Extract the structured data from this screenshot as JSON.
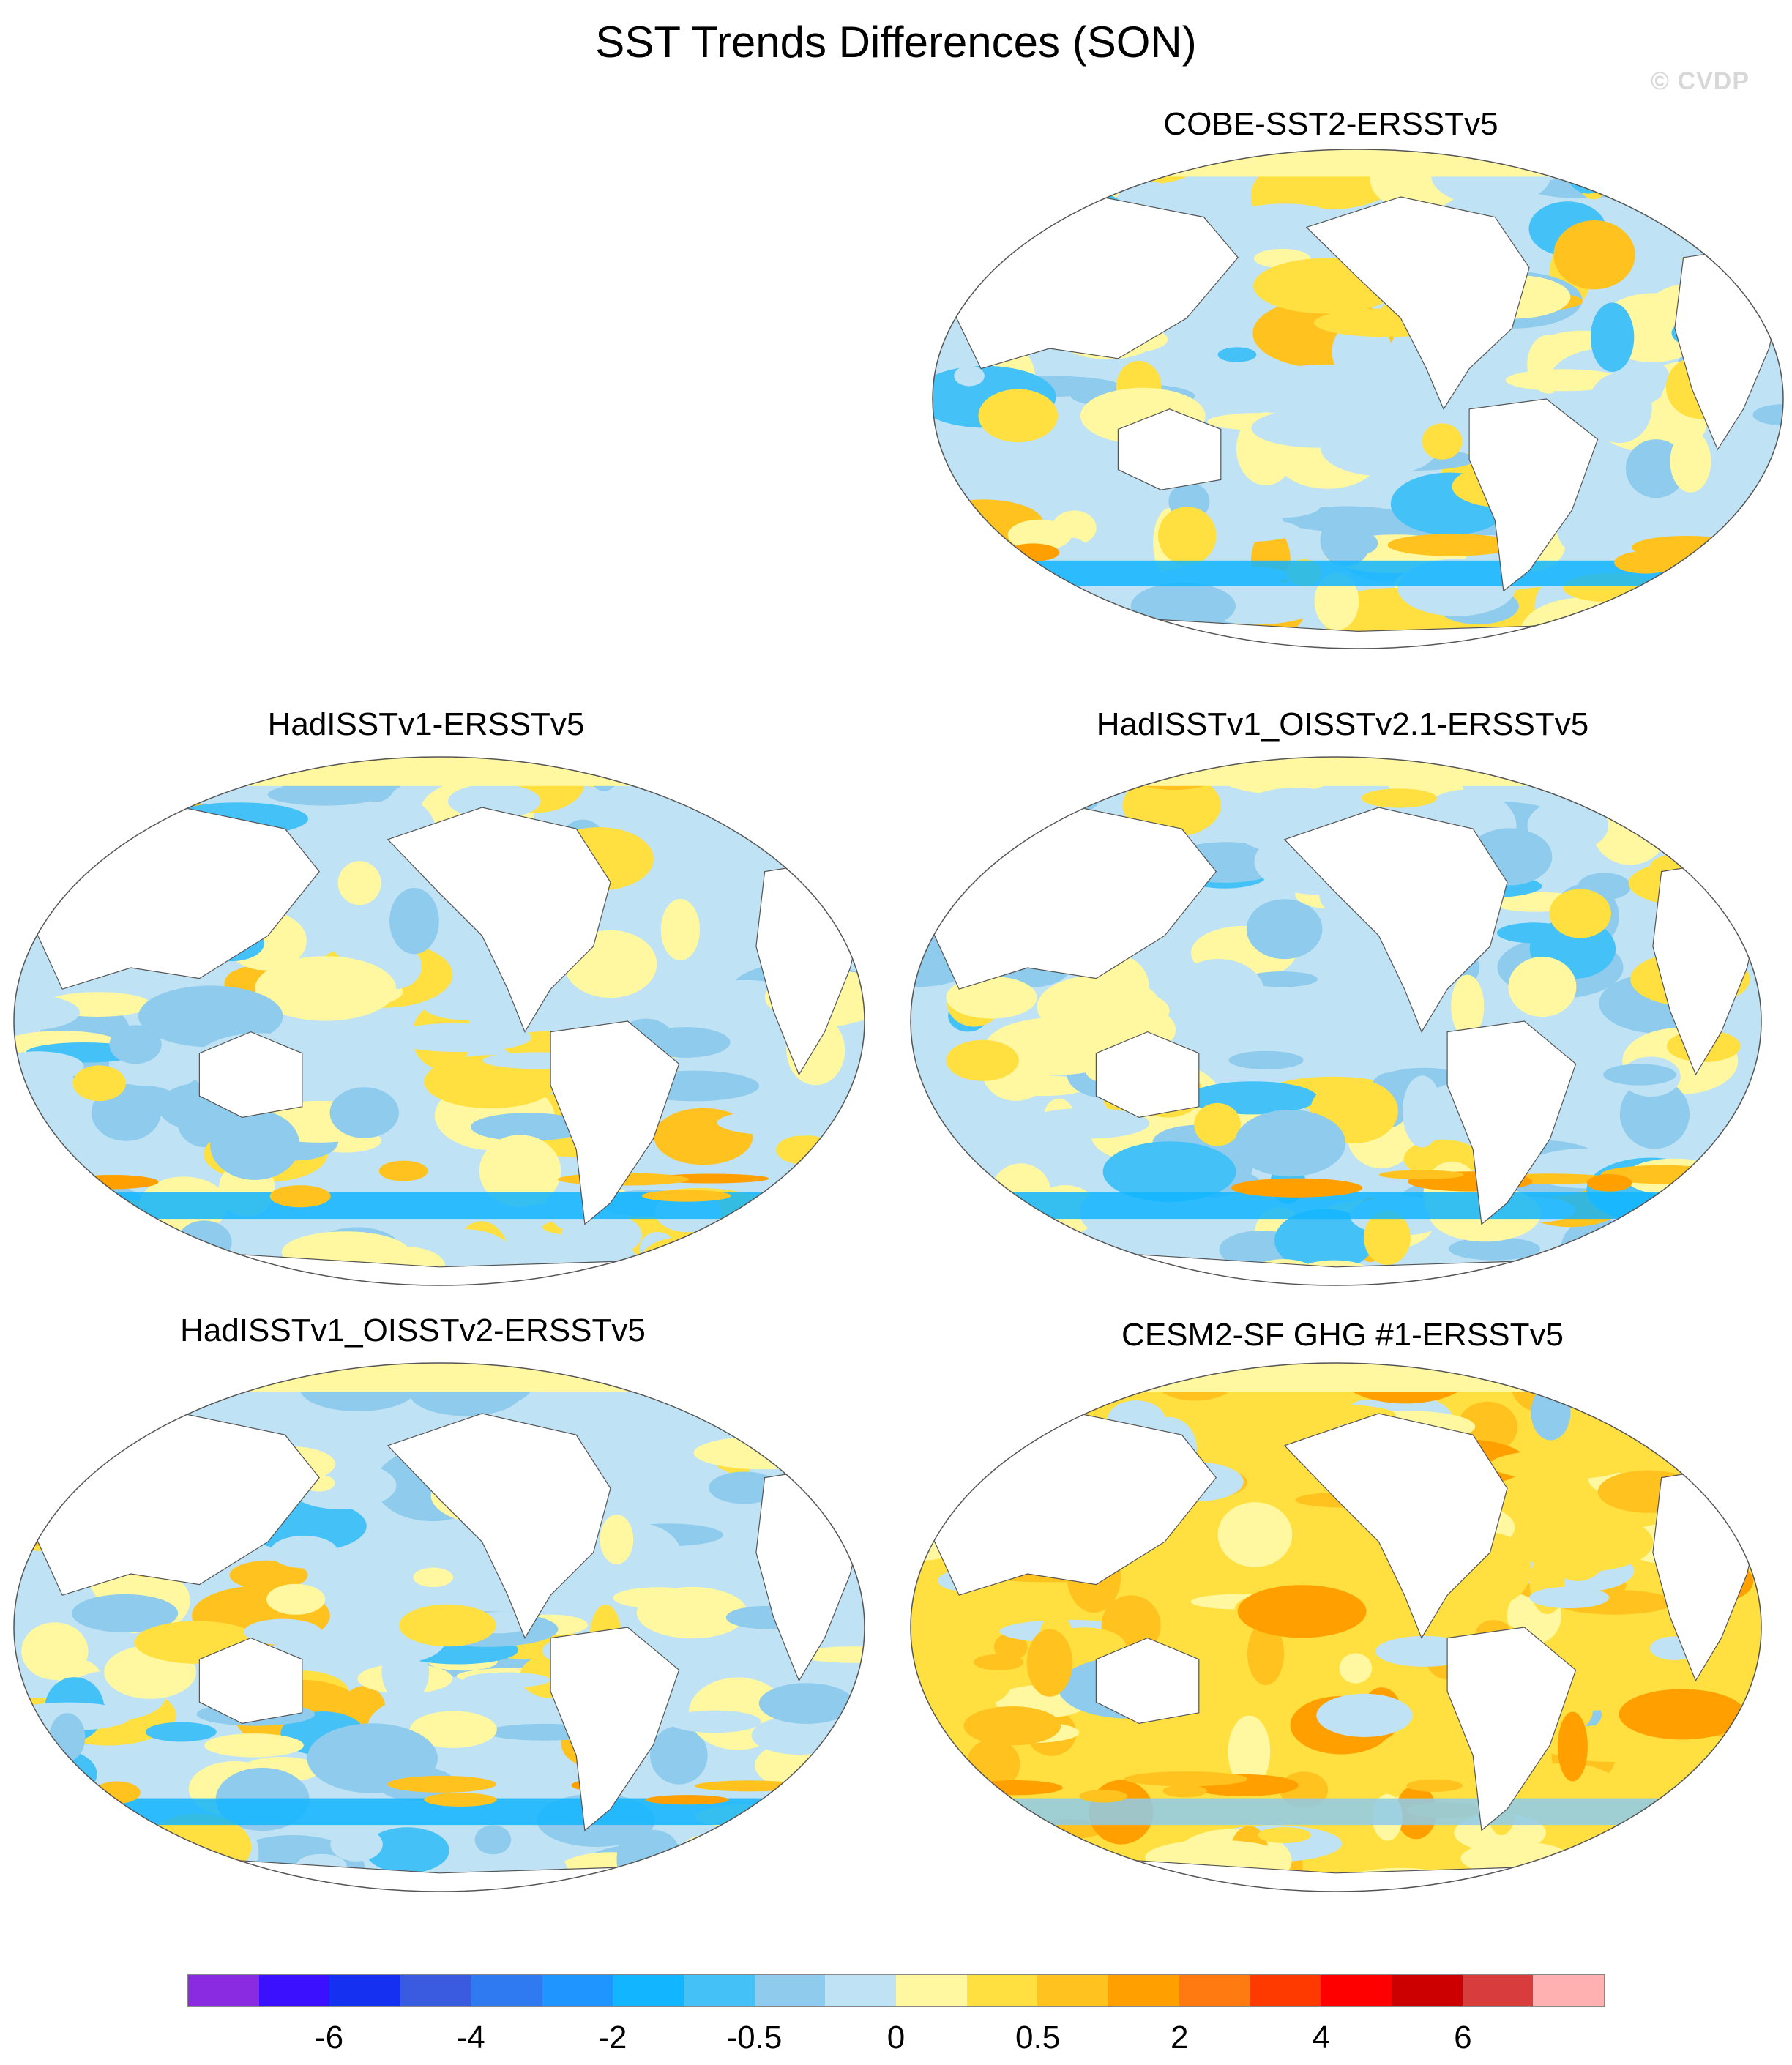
{
  "title": "SST Trends Differences (SON)",
  "watermark": "© CVDP",
  "panels": [
    {
      "id": "cobe",
      "title": "COBE-SST2-ERSSTv5",
      "pattern": "mixed"
    },
    {
      "id": "hadv1",
      "title": "HadISSTv1-ERSSTv5",
      "pattern": "cool"
    },
    {
      "id": "hadoi21",
      "title": "HadISSTv1_OISSTv2.1-ERSSTv5",
      "pattern": "cool"
    },
    {
      "id": "hadoi2",
      "title": "HadISSTv1_OISSTv2-ERSSTv5",
      "pattern": "cool"
    },
    {
      "id": "cesm",
      "title": "CESM2-SF GHG #1-ERSSTv5",
      "pattern": "warm"
    }
  ],
  "colorbar": {
    "colors": [
      "#8a2be2",
      "#3a10ff",
      "#1530f0",
      "#3a5ae0",
      "#2f7af0",
      "#1f96ff",
      "#12b5ff",
      "#44c2f7",
      "#8ecbec",
      "#bfe2f4",
      "#fff8a0",
      "#ffe040",
      "#ffc21f",
      "#ffa000",
      "#ff7a10",
      "#ff3a00",
      "#ff0000",
      "#cc0000",
      "#d83c3c",
      "#ffb0b0"
    ],
    "labels": [
      "-6",
      "-4",
      "-2",
      "-0.5",
      "0",
      "0.5",
      "2",
      "4",
      "6"
    ]
  }
}
